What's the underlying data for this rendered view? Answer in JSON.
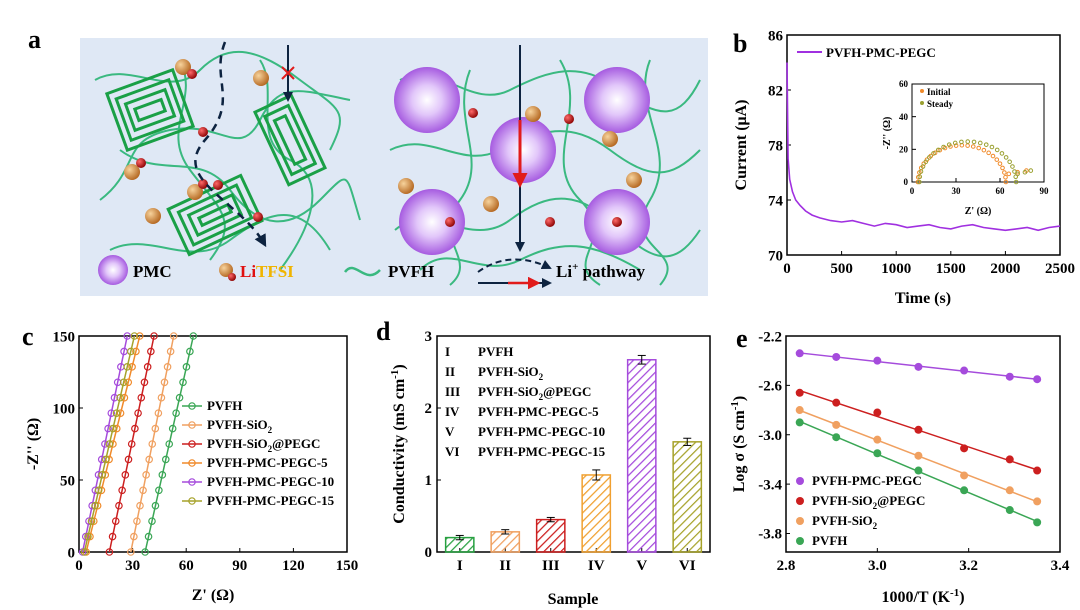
{
  "panels": {
    "a": {
      "label": "a",
      "legend": {
        "pmc": "PMC",
        "li": "Li",
        "tfsi": "TFSI",
        "pvfh": "PVFH",
        "pathway": "Li",
        "pathway_sup": "+",
        "pathway_rest": " pathway"
      },
      "colors": {
        "panel_bg": "#dfe8f5",
        "pmc": "#a65be0",
        "li": "#cc0000",
        "tfsi": "#f0b400",
        "pvfh": "#3ab980",
        "stack": "#1aa046",
        "arrow": "#0d2340",
        "arrow_red": "#e11b1b"
      }
    },
    "b": {
      "label": "b",
      "chart_data": {
        "type": "line",
        "series": [
          {
            "name": "PVFH-PMC-PEGC",
            "color": "#a030e0",
            "x": [
              0,
              10,
              25,
              50,
              80,
              120,
              170,
              230,
              300,
              400,
              500,
              600,
              700,
              800,
              900,
              1000,
              1100,
              1200,
              1300,
              1400,
              1500,
              1600,
              1700,
              1800,
              1900,
              2000,
              2100,
              2200,
              2300,
              2400,
              2500
            ],
            "y": [
              84.0,
              77.0,
              75.5,
              74.6,
              74.0,
              73.6,
              73.2,
              72.9,
              72.7,
              72.5,
              72.4,
              72.5,
              72.3,
              72.1,
              72.3,
              72.2,
              72.0,
              72.1,
              72.2,
              72.0,
              71.9,
              72.1,
              72.2,
              72.0,
              71.9,
              71.8,
              71.9,
              72.0,
              71.8,
              72.0,
              72.1
            ]
          }
        ],
        "xlabel": "Time (s)",
        "ylabel": "Current (μA)",
        "xlim": [
          0,
          2500
        ],
        "ylim": [
          70,
          86
        ],
        "xticks": [
          "0",
          "500",
          "1000",
          "1500",
          "2000",
          "2500"
        ],
        "yticks": [
          "70",
          "74",
          "78",
          "82",
          "86"
        ],
        "legend": "top-left",
        "inset": {
          "type": "scatter",
          "xlabel": "Z' (Ω)",
          "ylabel": "-Z'' (Ω)",
          "xlim": [
            0,
            90
          ],
          "ylim": [
            0,
            60
          ],
          "xticks": [
            "0",
            "30",
            "60",
            "90"
          ],
          "yticks": [
            "0",
            "20",
            "40",
            "60"
          ],
          "legend": "top-left",
          "series": [
            {
              "name": "Initial",
              "color": "#f08a2a",
              "rs": 4,
              "r": 30,
              "tail": [
                [
                  66,
                  5
                ],
                [
                  72,
                  6
                ],
                [
                  78,
                  7
                ]
              ]
            },
            {
              "name": "Steady",
              "color": "#9aa030",
              "rs": 5,
              "r": 33,
              "tail": [
                [
                  72,
                  5
                ],
                [
                  77,
                  6
                ],
                [
                  81,
                  7
                ]
              ]
            }
          ]
        }
      }
    },
    "c": {
      "label": "c",
      "chart_data": {
        "type": "line",
        "xlabel": "Z' (Ω)",
        "ylabel": "-Z'' (Ω)",
        "xlim": [
          0,
          150
        ],
        "ylim": [
          0,
          150
        ],
        "xticks": [
          "0",
          "30",
          "60",
          "90",
          "120",
          "150"
        ],
        "yticks": [
          "0",
          "50",
          "100",
          "150"
        ],
        "legend": "right",
        "series": [
          {
            "name": "PVFH",
            "sub": "",
            "rest": "",
            "color": "#3aa655",
            "x0": 37,
            "x1": 64
          },
          {
            "name": "PVFH-SiO",
            "sub": "2",
            "rest": "",
            "color": "#f0a060",
            "x0": 29,
            "x1": 53
          },
          {
            "name": "PVFH-SiO",
            "sub": "2",
            "rest": "@PEGC",
            "color": "#cc1f1f",
            "x0": 17,
            "x1": 42
          },
          {
            "name": "PVFH-PMC-PEGC-5",
            "sub": "",
            "rest": "",
            "color": "#f08a2a",
            "x0": 4,
            "x1": 34
          },
          {
            "name": "PVFH-PMC-PEGC-10",
            "sub": "",
            "rest": "",
            "color": "#a54bdc",
            "x0": 2,
            "x1": 27
          },
          {
            "name": "PVFH-PMC-PEGC-15",
            "sub": "",
            "rest": "",
            "color": "#a6a22a",
            "x0": 3,
            "x1": 31
          }
        ]
      }
    },
    "d": {
      "label": "d",
      "chart_data": {
        "type": "bar",
        "categories": [
          "I",
          "II",
          "III",
          "IV",
          "V",
          "VI"
        ],
        "values": [
          0.2,
          0.28,
          0.45,
          1.07,
          2.67,
          1.53
        ],
        "errors": [
          0.03,
          0.03,
          0.03,
          0.07,
          0.06,
          0.05
        ],
        "colors": [
          "#27a040",
          "#f0a060",
          "#cc1f1f",
          "#f0a030",
          "#a54bdc",
          "#a6a22a"
        ],
        "xlabel": "Sample",
        "ylabel": "Conductivity (mS cm",
        "ylabel_sup": "-1",
        "ylabel_end": ")",
        "ylim": [
          0,
          3
        ],
        "yticks": [
          "0",
          "1",
          "2",
          "3"
        ],
        "legend": [
          {
            "num": "I",
            "name": "PVFH",
            "sub": "",
            "rest": ""
          },
          {
            "num": "II",
            "name": "PVFH-SiO",
            "sub": "2",
            "rest": ""
          },
          {
            "num": "III",
            "name": "PVFH-SiO",
            "sub": "2",
            "rest": "@PEGC"
          },
          {
            "num": "IV",
            "name": "PVFH-PMC-PEGC-5",
            "sub": "",
            "rest": ""
          },
          {
            "num": "V",
            "name": "PVFH-PMC-PEGC-10",
            "sub": "",
            "rest": ""
          },
          {
            "num": "VI",
            "name": "PVFH-PMC-PEGC-15",
            "sub": "",
            "rest": ""
          }
        ]
      }
    },
    "e": {
      "label": "e",
      "chart_data": {
        "type": "scatter",
        "xlabel": "1000/T (K",
        "xlabel_sup": "-1",
        "xlabel_end": ")",
        "ylabel": "Log σ (S cm",
        "ylabel_sup": "-1",
        "ylabel_end": ")",
        "xlim": [
          2.8,
          3.4
        ],
        "ylim": [
          -3.95,
          -2.2
        ],
        "xticks": [
          "2.8",
          "3.0",
          "3.2",
          "3.4"
        ],
        "yticks": [
          "-2.2",
          "-2.6",
          "-3.0",
          "-3.4",
          "-3.8"
        ],
        "legend": "bottom-left",
        "x": [
          2.83,
          2.91,
          3.0,
          3.09,
          3.19,
          3.29,
          3.35
        ],
        "series": [
          {
            "name": "PVFH-PMC-PEGC",
            "sub": "",
            "rest": "",
            "color": "#a54bdc",
            "y": [
              -2.34,
              -2.37,
              -2.4,
              -2.45,
              -2.48,
              -2.53,
              -2.55
            ]
          },
          {
            "name": "PVFH-SiO",
            "sub": "2",
            "rest": "@PEGC",
            "color": "#cc1f1f",
            "y": [
              -2.66,
              -2.74,
              -2.82,
              -2.96,
              -3.11,
              -3.2,
              -3.29
            ]
          },
          {
            "name": "PVFH-SiO",
            "sub": "2",
            "rest": "",
            "color": "#f0a060",
            "y": [
              -2.8,
              -2.92,
              -3.04,
              -3.17,
              -3.33,
              -3.45,
              -3.54
            ]
          },
          {
            "name": "PVFH",
            "sub": "",
            "rest": "",
            "color": "#3aa655",
            "y": [
              -2.9,
              -3.02,
              -3.15,
              -3.29,
              -3.45,
              -3.61,
              -3.71
            ]
          }
        ]
      }
    }
  }
}
